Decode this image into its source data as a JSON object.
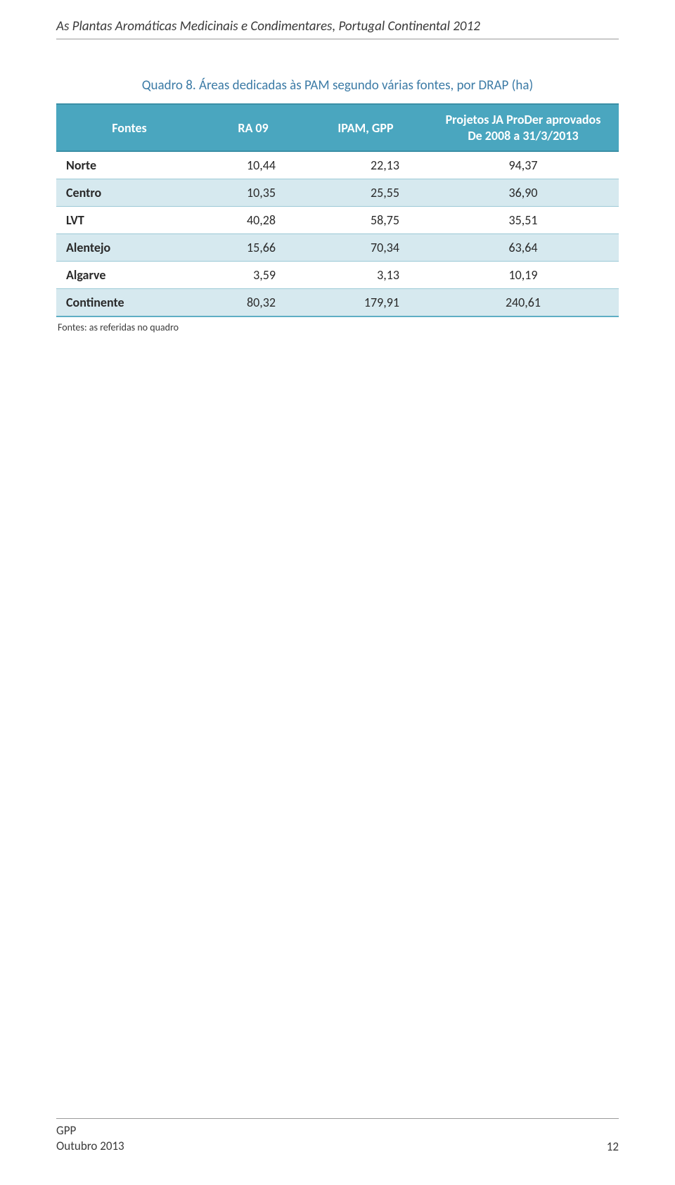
{
  "running_header": "As Plantas Aromáticas Medicinais e Condimentares, Portugal Continental 2012",
  "table": {
    "title": "Quadro 8. Áreas dedicadas às PAM segundo várias fontes, por DRAP (ha)",
    "headers": {
      "fontes": "Fontes",
      "ra": "RA 09",
      "ipam": "IPAM, GPP",
      "proj_line1": "Projetos JA ProDer aprovados",
      "proj_line2": "De 2008 a 31/3/2013"
    },
    "rows": [
      {
        "label": "Norte",
        "ra": "10,44",
        "ipam": "22,13",
        "proj": "94,37"
      },
      {
        "label": "Centro",
        "ra": "10,35",
        "ipam": "25,55",
        "proj": "36,90"
      },
      {
        "label": "LVT",
        "ra": "40,28",
        "ipam": "58,75",
        "proj": "35,51"
      },
      {
        "label": "Alentejo",
        "ra": "15,66",
        "ipam": "70,34",
        "proj": "63,64"
      },
      {
        "label": "Algarve",
        "ra": "3,59",
        "ipam": "3,13",
        "proj": "10,19"
      },
      {
        "label": "Continente",
        "ra": "80,32",
        "ipam": "179,91",
        "proj": "240,61"
      }
    ],
    "note": "Fontes: as referidas no quadro"
  },
  "footer": {
    "org": "GPP",
    "date": "Outubro 2013",
    "page": "12"
  },
  "colors": {
    "header_bg": "#4aa6bf",
    "band_bg": "#d6e9ef",
    "title_color": "#3c7ba6",
    "rule": "#9a9a9a"
  }
}
